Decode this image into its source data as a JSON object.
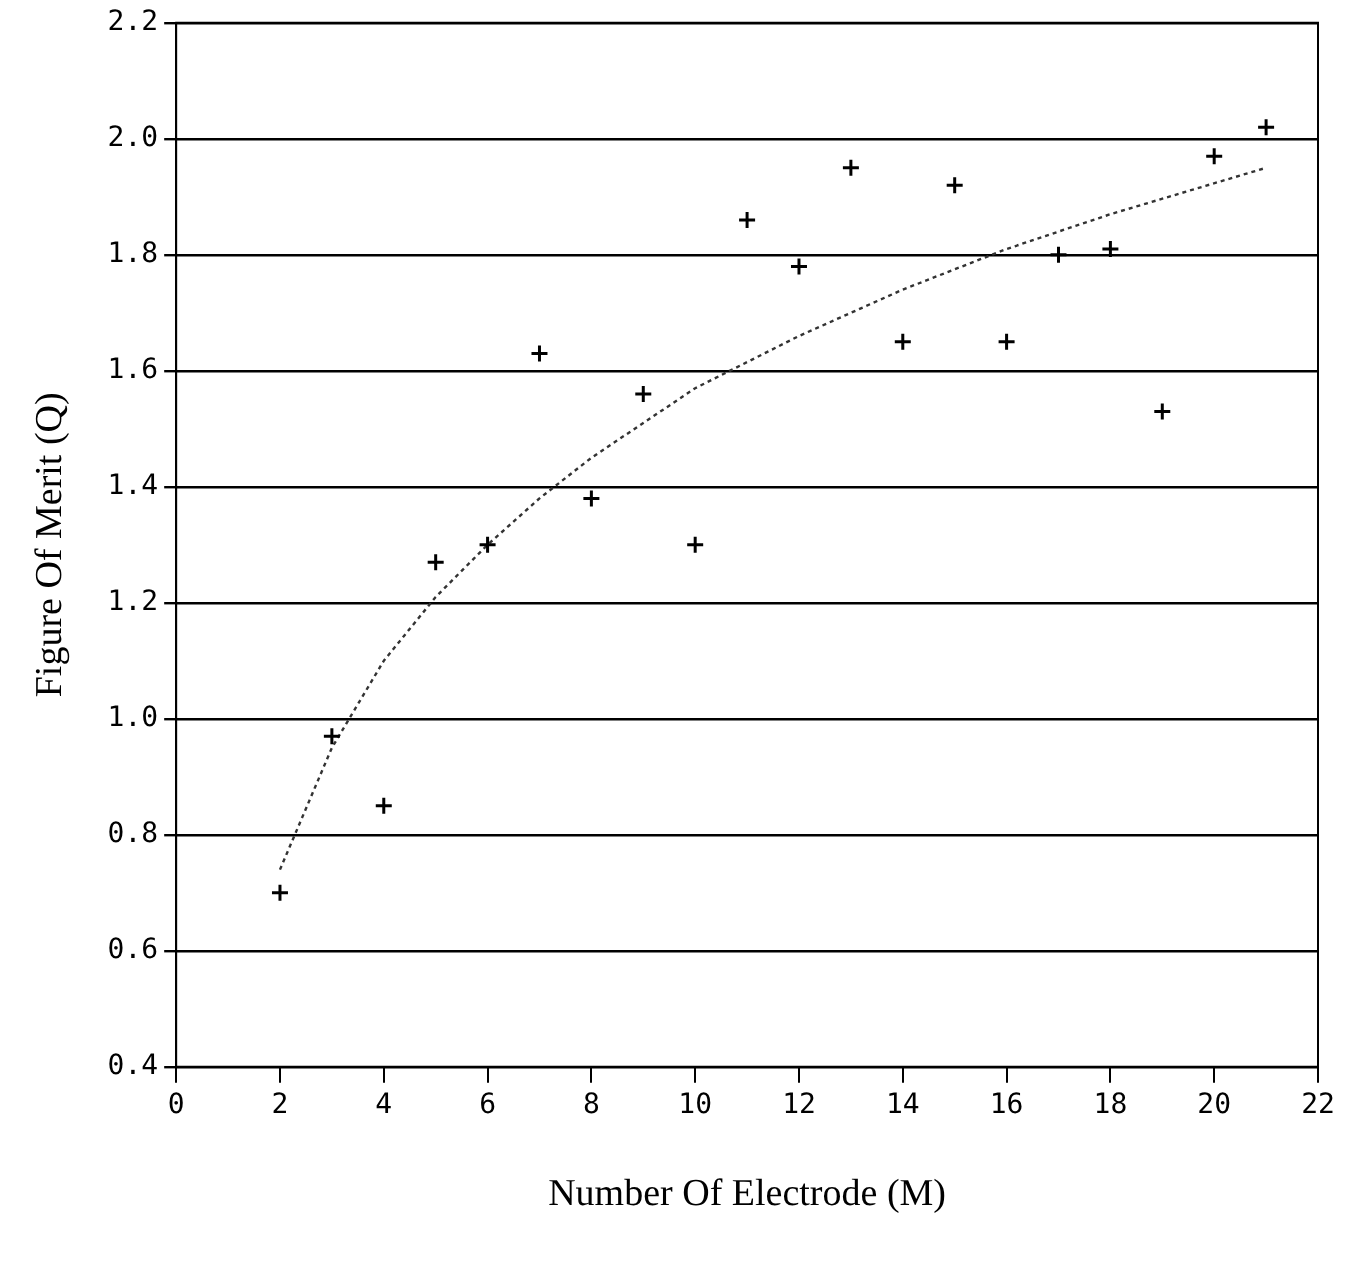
{
  "chart_data": {
    "type": "scatter",
    "xlabel": "Number Of Electrode (M)",
    "ylabel": "Figure Of Merit (Q)",
    "xlim": [
      0,
      22
    ],
    "xticks": [
      0,
      2,
      4,
      6,
      8,
      10,
      12,
      14,
      16,
      18,
      20,
      22
    ],
    "ylim": [
      0.4,
      2.2
    ],
    "yticks": [
      {
        "value": 0.4,
        "label": "0.4"
      },
      {
        "value": 0.6,
        "label": "0.6"
      },
      {
        "value": 0.8,
        "label": "0.8"
      },
      {
        "value": 1.0,
        "label": "1.0"
      },
      {
        "value": 1.2,
        "label": "1.2"
      },
      {
        "value": 1.4,
        "label": "1.4"
      },
      {
        "value": 1.6,
        "label": "1.6"
      },
      {
        "value": 1.8,
        "label": "1.8"
      },
      {
        "value": 2.0,
        "label": "2.0"
      },
      {
        "value": 2.2,
        "label": "2.2"
      }
    ],
    "grid": "y",
    "marker": "cross",
    "series": [
      {
        "color": "#000000",
        "x": [
          2,
          3,
          4,
          5,
          6,
          7,
          8,
          9,
          10,
          11,
          12,
          13,
          14,
          15,
          16,
          17,
          18,
          19,
          20,
          21
        ],
        "values": [
          0.7,
          0.97,
          0.85,
          1.27,
          1.3,
          1.63,
          1.38,
          1.56,
          1.3,
          1.86,
          1.78,
          1.95,
          1.65,
          1.92,
          1.65,
          1.8,
          1.81,
          1.53,
          1.97,
          2.02
        ]
      },
      {
        "type": "line",
        "color": "#333333",
        "line_style": "dotted",
        "marker": "none",
        "x": [
          2,
          3,
          4,
          5,
          6,
          7,
          8,
          10,
          12,
          14,
          16,
          18,
          21
        ],
        "values": [
          0.74,
          0.95,
          1.1,
          1.21,
          1.3,
          1.38,
          1.45,
          1.57,
          1.66,
          1.74,
          1.81,
          1.87,
          1.95
        ]
      }
    ]
  }
}
